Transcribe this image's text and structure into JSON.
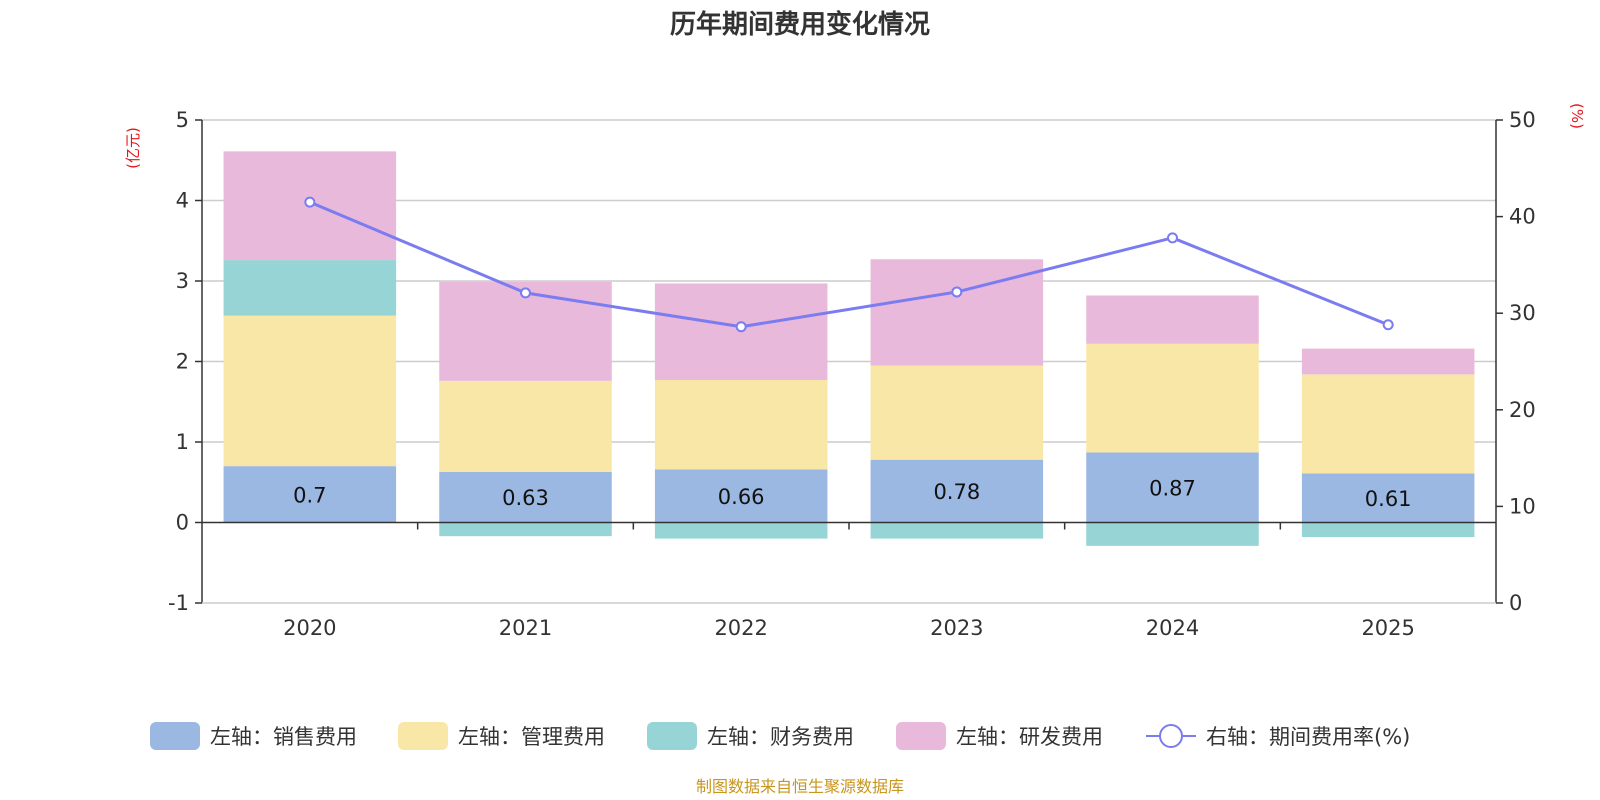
{
  "chart_data": {
    "type": "bar",
    "title": "历年期间费用变化情况",
    "categories": [
      "2020",
      "2021",
      "2022",
      "2023",
      "2024",
      "2025"
    ],
    "left_axis": {
      "unit": "(亿元)",
      "ylim": [
        -1,
        5
      ],
      "ticks": [
        "-1",
        "0",
        "1",
        "2",
        "3",
        "4",
        "5"
      ]
    },
    "right_axis": {
      "unit": "(%)",
      "ylim": [
        0,
        50
      ],
      "ticks": [
        "0",
        "10",
        "20",
        "30",
        "40",
        "50"
      ]
    },
    "series": [
      {
        "name": "左轴：销售费用",
        "color": "#9bb8e3",
        "values": [
          0.7,
          0.63,
          0.66,
          0.78,
          0.87,
          0.61
        ],
        "labels": [
          "0.7",
          "0.63",
          "0.66",
          "0.78",
          "0.87",
          "0.61"
        ]
      },
      {
        "name": "左轴：管理费用",
        "color": "#f8e7a7",
        "values": [
          1.87,
          1.13,
          1.11,
          1.17,
          1.35,
          1.23
        ]
      },
      {
        "name": "左轴：财务费用",
        "color": "#96d4d5",
        "values": [
          0.69,
          -0.17,
          -0.2,
          -0.2,
          -0.29,
          -0.18
        ]
      },
      {
        "name": "左轴：研发费用",
        "color": "#e8b9da",
        "values": [
          1.35,
          1.23,
          1.2,
          1.32,
          0.6,
          0.32
        ]
      }
    ],
    "line_series": {
      "name": "右轴：期间费用率(%)",
      "color": "#7a7cf0",
      "values": [
        41.5,
        32.1,
        28.6,
        32.2,
        37.8,
        28.8
      ]
    },
    "grid": true,
    "legend": "bottom"
  },
  "source": "制图数据来自恒生聚源数据库"
}
